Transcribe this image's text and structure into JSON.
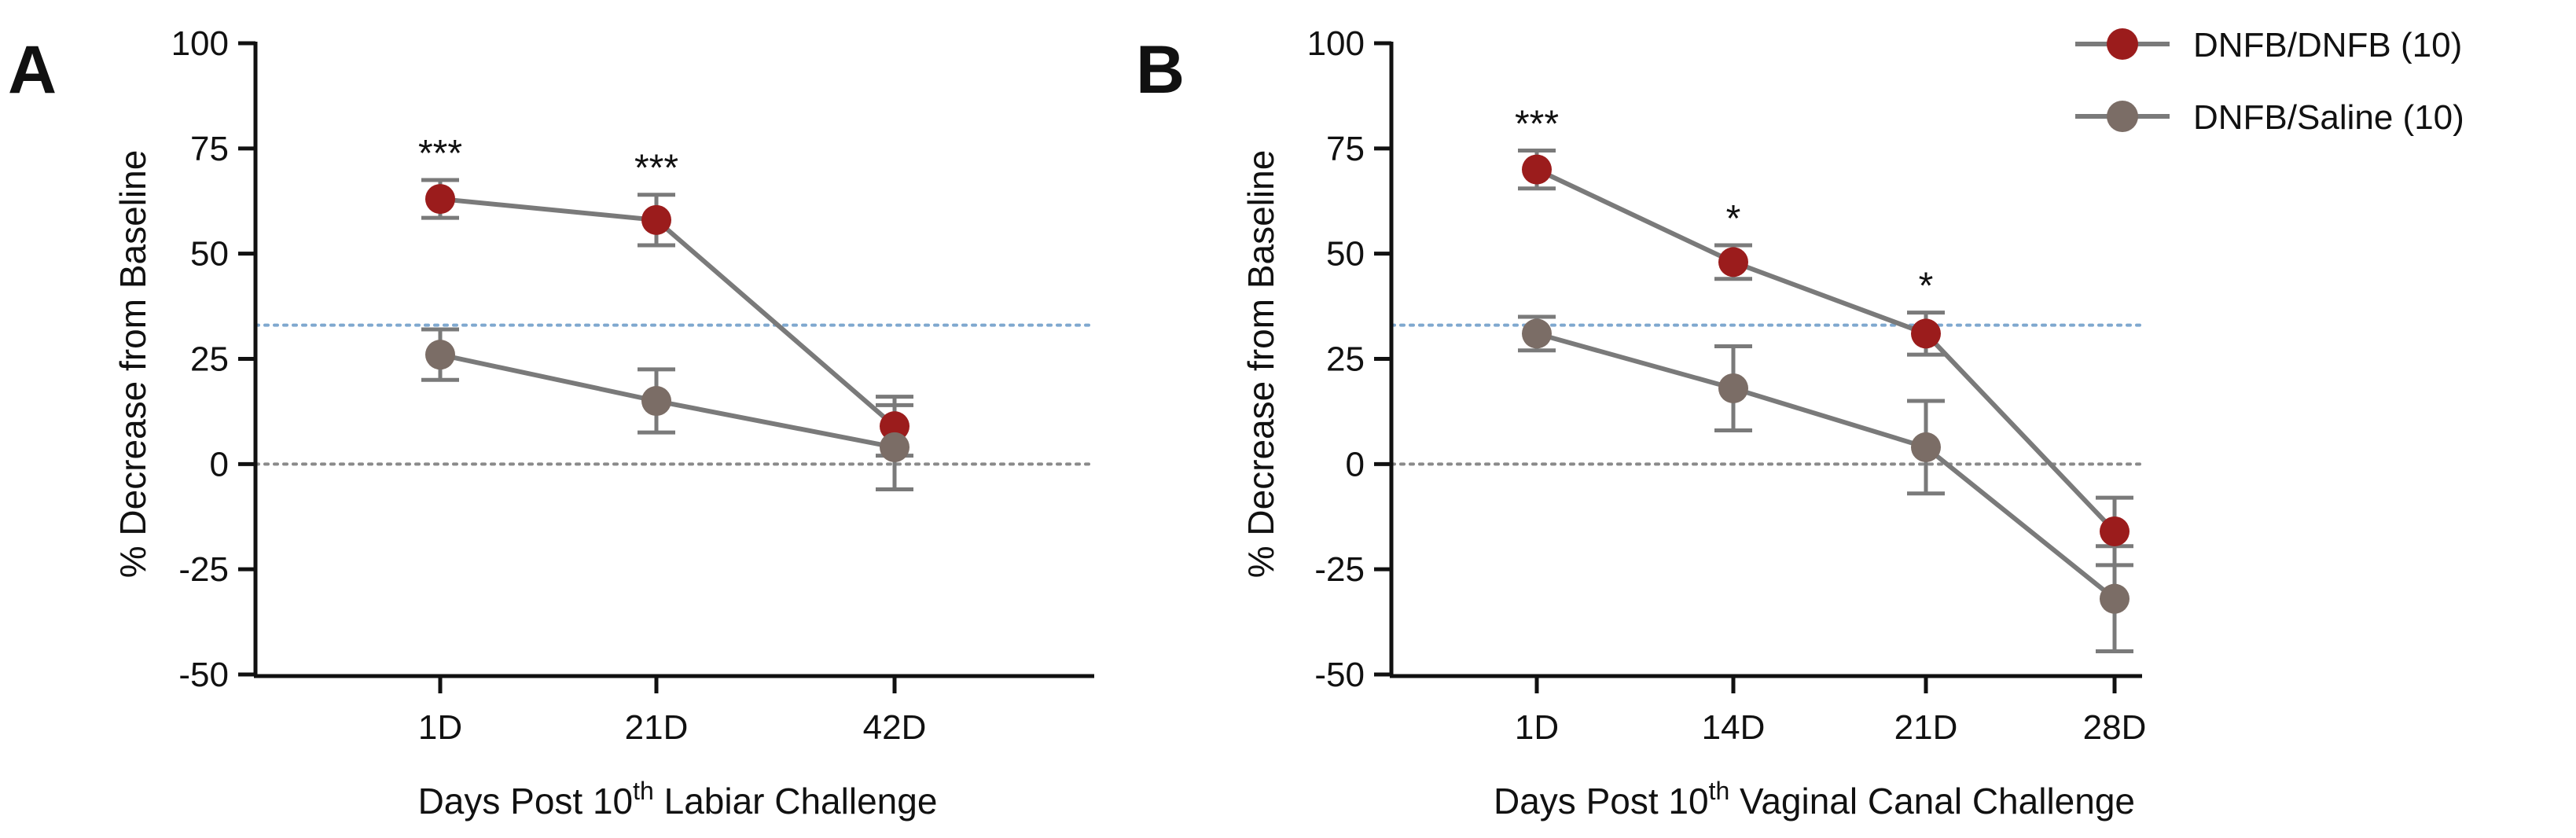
{
  "colors": {
    "dnfb_dnfb": "#9b1c1c",
    "dnfb_saline": "#7b6d66",
    "line": "#7a7a7a",
    "errorbar": "#7a7a7a",
    "threshold_line": "#7fa8cf",
    "zero_line": "#8a8a8a",
    "axis": "#111111"
  },
  "legend": {
    "items": [
      {
        "label": "DNFB/DNFB (10)",
        "color": "#9b1c1c"
      },
      {
        "label": "DNFB/Saline (10)",
        "color": "#7b6d66"
      }
    ]
  },
  "chart_data": [
    {
      "type": "line",
      "panel": "A",
      "title": "",
      "xlabel_prefix": "Days Post 10",
      "xlabel_sup": "th",
      "xlabel_suffix": " Labiar Challenge",
      "ylabel": "% Decrease from Baseline",
      "ylim": [
        -50,
        100
      ],
      "yticks": [
        "100",
        "75",
        "50",
        "25",
        "0",
        "-25",
        "-50"
      ],
      "ytick_values": [
        100,
        75,
        50,
        25,
        0,
        -25,
        -50
      ],
      "categories": [
        "1D",
        "21D",
        "42D"
      ],
      "reference_lines": [
        {
          "y": 33,
          "style": "dotted",
          "color": "#7fa8cf"
        },
        {
          "y": 0,
          "style": "dotted",
          "color": "#8a8a8a"
        }
      ],
      "series": [
        {
          "name": "DNFB/DNFB (10)",
          "color": "#9b1c1c",
          "values": [
            63,
            58,
            9
          ],
          "errors": [
            4.5,
            6,
            7
          ]
        },
        {
          "name": "DNFB/Saline (10)",
          "color": "#7b6d66",
          "values": [
            26,
            15,
            4
          ],
          "errors": [
            6,
            7.5,
            10
          ]
        }
      ],
      "significance": [
        "***",
        "***",
        ""
      ]
    },
    {
      "type": "line",
      "panel": "B",
      "title": "",
      "xlabel_prefix": "Days Post 10",
      "xlabel_sup": "th",
      "xlabel_suffix": " Vaginal Canal Challenge",
      "ylabel": "% Decrease from Baseline",
      "ylim": [
        -50,
        100
      ],
      "yticks": [
        "100",
        "75",
        "50",
        "25",
        "0",
        "-25",
        "-50"
      ],
      "ytick_values": [
        100,
        75,
        50,
        25,
        0,
        -25,
        -50
      ],
      "categories": [
        "1D",
        "14D",
        "21D",
        "28D"
      ],
      "reference_lines": [
        {
          "y": 33,
          "style": "dotted",
          "color": "#7fa8cf"
        },
        {
          "y": 0,
          "style": "dotted",
          "color": "#8a8a8a"
        }
      ],
      "series": [
        {
          "name": "DNFB/DNFB (10)",
          "color": "#9b1c1c",
          "values": [
            70,
            48,
            31,
            -16
          ],
          "errors": [
            4.5,
            4,
            5,
            8
          ]
        },
        {
          "name": "DNFB/Saline (10)",
          "color": "#7b6d66",
          "values": [
            31,
            18,
            4,
            -32
          ],
          "errors": [
            4,
            10,
            11,
            12.5
          ]
        }
      ],
      "significance": [
        "***",
        "*",
        "*",
        ""
      ]
    }
  ]
}
